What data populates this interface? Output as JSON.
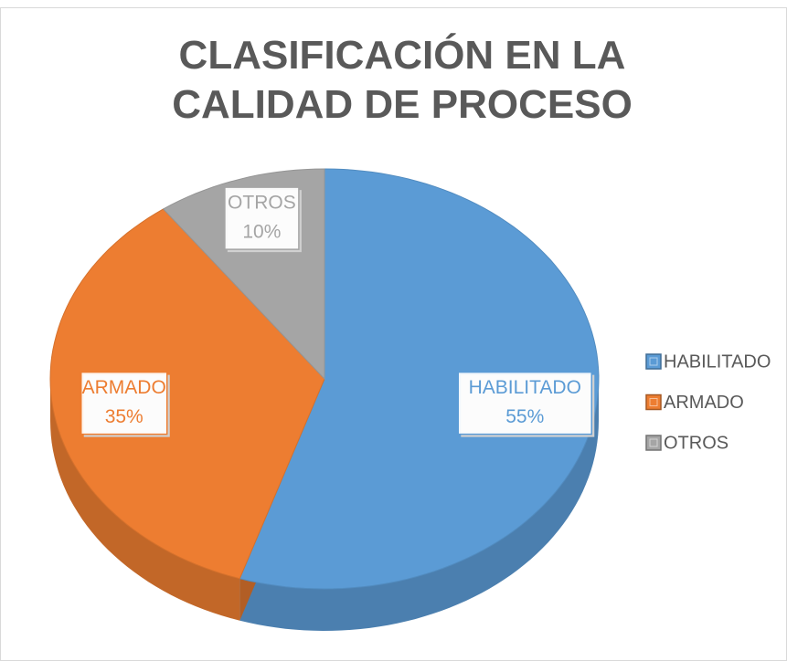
{
  "chart_data": {
    "type": "pie",
    "title": "CLASIFICACIÓN EN LA CALIDAD DE PROCESO",
    "categories": [
      "HABILITADO",
      "ARMADO",
      "OTROS"
    ],
    "values": [
      55,
      35,
      10
    ],
    "value_labels": [
      "55%",
      "35%",
      "10%"
    ],
    "colors": [
      "#5b9bd5",
      "#ed7d31",
      "#a5a5a5"
    ],
    "legend": "right"
  }
}
